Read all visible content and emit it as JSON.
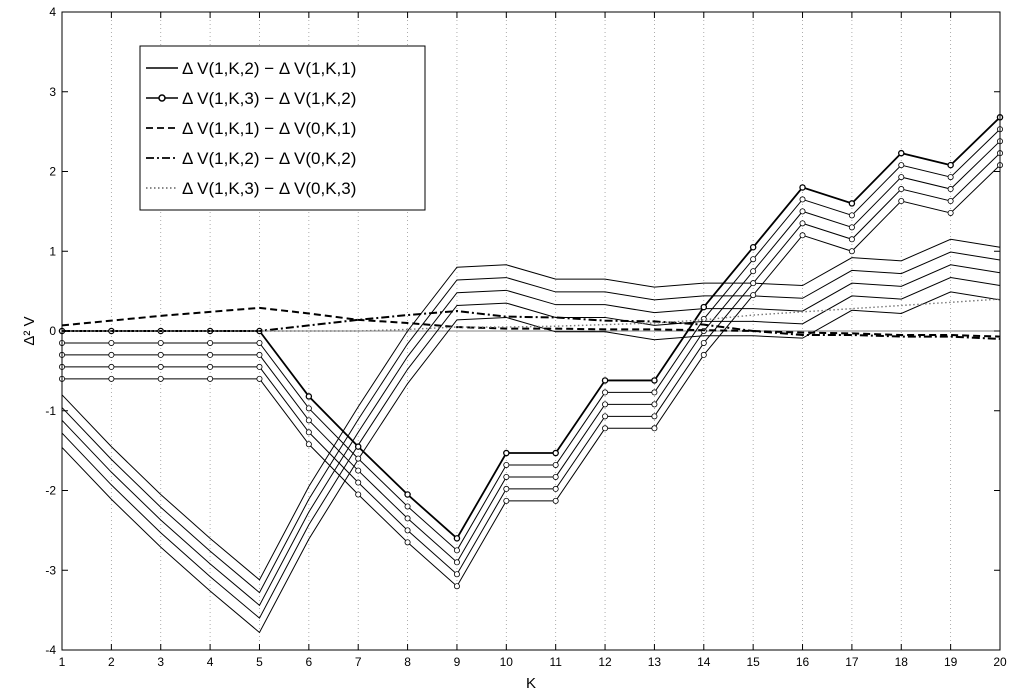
{
  "chart_data": {
    "type": "line",
    "title": "",
    "xlabel": "K",
    "ylabel": "Δ² V",
    "xlim": [
      1,
      20
    ],
    "ylim": [
      -4,
      4
    ],
    "x_ticks": [
      1,
      2,
      3,
      4,
      5,
      6,
      7,
      8,
      9,
      10,
      11,
      12,
      13,
      14,
      15,
      16,
      17,
      18,
      19,
      20
    ],
    "y_ticks": [
      -4,
      -3,
      -2,
      -1,
      0,
      1,
      2,
      3,
      4
    ],
    "grid": "vertical-dotted",
    "legend_position": "top-left",
    "x": [
      1,
      2,
      3,
      4,
      5,
      6,
      7,
      8,
      9,
      10,
      11,
      12,
      13,
      14,
      15,
      16,
      17,
      18,
      19,
      20
    ],
    "series": [
      {
        "name": "Δ V(1,K,2) − Δ V(1,K,1)",
        "style": "solid",
        "marker": "none",
        "curves": 5,
        "values": [
          -0.8,
          -1.45,
          -2.05,
          -2.6,
          -3.12,
          -1.95,
          -0.95,
          0.0,
          0.8,
          0.83,
          0.65,
          0.65,
          0.55,
          0.6,
          0.6,
          0.57,
          0.92,
          0.88,
          1.15,
          1.05
        ],
        "offsets": [
          0,
          -0.16,
          -0.32,
          -0.48,
          -0.66
        ]
      },
      {
        "name": "Δ V(1,K,3) − Δ V(1,K,2)",
        "style": "solid",
        "marker": "circle",
        "curves": 5,
        "values": [
          0,
          0,
          0,
          0,
          0,
          -0.82,
          -1.45,
          -2.05,
          -2.6,
          -1.53,
          -1.53,
          -0.62,
          -0.62,
          0.3,
          1.05,
          1.8,
          1.6,
          2.23,
          2.08,
          2.68
        ],
        "offsets": [
          0,
          -0.15,
          -0.3,
          -0.45,
          -0.6
        ]
      },
      {
        "name": "Δ V(1,K,1) − Δ V(0,K,1)",
        "style": "dashed",
        "marker": "none",
        "curves": 1,
        "values": [
          0.07,
          0.13,
          0.19,
          0.24,
          0.29,
          0.22,
          0.14,
          0.1,
          0.05,
          0.03,
          0.03,
          0.02,
          0.02,
          0.01,
          0.0,
          -0.02,
          -0.03,
          -0.05,
          -0.05,
          -0.07
        ]
      },
      {
        "name": "Δ V(1,K,2) − Δ V(0,K,2)",
        "style": "dashdot",
        "marker": "none",
        "curves": 1,
        "values": [
          0,
          0,
          0,
          0,
          0,
          0.07,
          0.14,
          0.2,
          0.25,
          0.18,
          0.17,
          0.13,
          0.12,
          0.08,
          0.0,
          -0.05,
          -0.05,
          -0.07,
          -0.07,
          -0.1
        ]
      },
      {
        "name": "Δ V(1,K,3) − Δ V(0,K,3)",
        "style": "dotted",
        "marker": "none",
        "curves": 1,
        "values": [
          0,
          0,
          0,
          0,
          0,
          0,
          0.0,
          0.02,
          0.05,
          0.05,
          0.06,
          0.08,
          0.1,
          0.14,
          0.2,
          0.24,
          0.28,
          0.32,
          0.36,
          0.4
        ]
      }
    ]
  }
}
